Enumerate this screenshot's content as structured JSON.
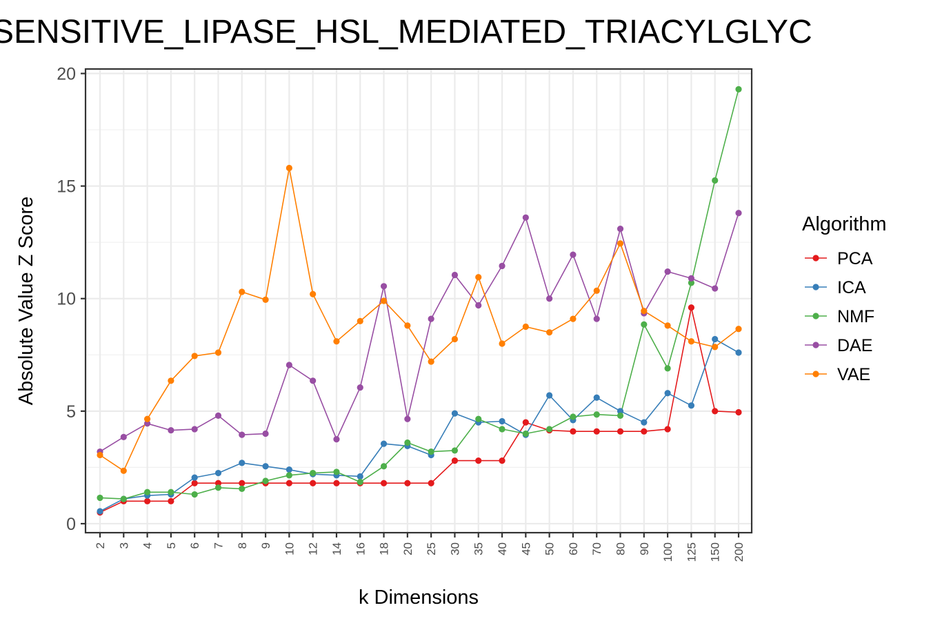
{
  "chart_data": {
    "type": "line",
    "title": "SENSITIVE_LIPASE_HSL_MEDIATED_TRIACYLGLYC",
    "xlabel": "k Dimensions",
    "ylabel": "Absolute Value Z Score",
    "categories": [
      "2",
      "3",
      "4",
      "5",
      "6",
      "7",
      "8",
      "9",
      "10",
      "12",
      "14",
      "16",
      "18",
      "20",
      "25",
      "30",
      "35",
      "40",
      "45",
      "50",
      "60",
      "70",
      "80",
      "90",
      "100",
      "125",
      "150",
      "200"
    ],
    "yticks": [
      "0",
      "5",
      "10",
      "15",
      "20"
    ],
    "ylim": [
      -0.4,
      20.2
    ],
    "grid": true,
    "legend": {
      "title": "Algorithm",
      "position": "right"
    },
    "series": [
      {
        "name": "PCA",
        "color": "#e41a1c",
        "values": [
          0.5,
          1.0,
          1.0,
          1.0,
          1.8,
          1.8,
          1.8,
          1.8,
          1.8,
          1.8,
          1.8,
          1.8,
          1.8,
          1.8,
          1.8,
          2.8,
          2.8,
          2.8,
          4.5,
          4.15,
          4.1,
          4.1,
          4.1,
          4.1,
          4.2,
          9.6,
          5.0,
          4.95
        ]
      },
      {
        "name": "ICA",
        "color": "#377eb8",
        "values": [
          0.55,
          1.1,
          1.25,
          1.3,
          2.05,
          2.25,
          2.7,
          2.55,
          2.4,
          2.2,
          2.15,
          2.1,
          3.55,
          3.45,
          3.05,
          4.9,
          4.5,
          4.55,
          3.95,
          5.7,
          4.6,
          5.6,
          5.0,
          4.5,
          5.8,
          5.25,
          8.2,
          7.6
        ]
      },
      {
        "name": "NMF",
        "color": "#4daf4a",
        "values": [
          1.15,
          1.1,
          1.4,
          1.4,
          1.3,
          1.6,
          1.55,
          1.9,
          2.15,
          2.25,
          2.3,
          1.85,
          2.55,
          3.6,
          3.2,
          3.25,
          4.65,
          4.2,
          4.0,
          4.2,
          4.75,
          4.85,
          4.8,
          8.85,
          6.9,
          10.7,
          15.25,
          19.3
        ]
      },
      {
        "name": "DAE",
        "color": "#984ea3",
        "values": [
          3.2,
          3.85,
          4.45,
          4.15,
          4.2,
          4.8,
          3.95,
          4.0,
          7.05,
          6.35,
          3.75,
          6.05,
          10.55,
          4.65,
          9.1,
          11.05,
          9.7,
          11.45,
          13.6,
          10.0,
          11.95,
          9.1,
          13.1,
          9.35,
          11.2,
          10.9,
          10.45,
          13.8
        ]
      },
      {
        "name": "VAE",
        "color": "#ff7f00",
        "values": [
          3.05,
          2.35,
          4.65,
          6.35,
          7.45,
          7.6,
          10.3,
          9.95,
          15.8,
          10.2,
          8.1,
          9.0,
          9.9,
          8.8,
          7.2,
          8.2,
          10.95,
          8.0,
          8.75,
          8.5,
          9.1,
          10.35,
          12.45,
          9.45,
          8.8,
          8.1,
          7.85,
          8.65
        ]
      }
    ]
  }
}
